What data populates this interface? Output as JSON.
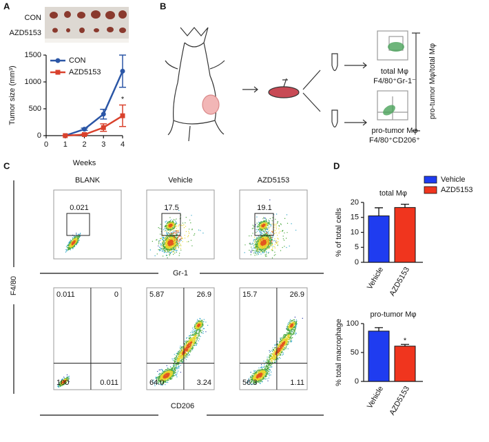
{
  "panel_labels": [
    "A",
    "B",
    "C",
    "D"
  ],
  "tumor_photo": {
    "labels": [
      "CON",
      "AZD5153"
    ]
  },
  "diagram": {
    "gates": [
      {
        "name": "total Mφ",
        "marker": "F4/80⁺Gr-1⁻"
      },
      {
        "name": "pro-tumor Mφ",
        "marker": "F4/80⁺CD206⁺"
      }
    ],
    "ratio": "pro-tumor Mφ/total Mφ"
  },
  "flow": {
    "columns": [
      "BLANK",
      "Vehicle",
      "AZD5153"
    ],
    "gate_values": [
      "0.021",
      "17.5",
      "19.1"
    ],
    "quadrant_values": [
      [
        "0.011",
        "0",
        "100",
        "0.011"
      ],
      [
        "5.87",
        "26.9",
        "64.0",
        "3.24"
      ],
      [
        "15.7",
        "26.9",
        "56.3",
        "1.11"
      ]
    ],
    "x_label_top": "Gr-1",
    "y_label": "F4/80",
    "x_label_bottom": "CD206"
  },
  "chart_data": [
    {
      "type": "line",
      "x_label": "Weeks",
      "y_label": "Tumor size (mm³)",
      "x": [
        1,
        2,
        3,
        4
      ],
      "series": [
        {
          "name": "CON",
          "color": "#2b56a6",
          "values": [
            0,
            120,
            400,
            1200
          ],
          "errors": [
            0,
            20,
            90,
            300
          ]
        },
        {
          "name": "AZD5153",
          "color": "#d9412c",
          "values": [
            0,
            20,
            150,
            370
          ],
          "errors": [
            0,
            10,
            70,
            200
          ]
        }
      ],
      "annotation": "*",
      "xlim": [
        0,
        4
      ],
      "xticks": [
        0,
        1,
        2,
        3,
        4
      ],
      "ylim": [
        0,
        1500
      ],
      "yticks": [
        0,
        500,
        1000,
        1500
      ],
      "legend": "top-left"
    },
    {
      "type": "bar",
      "title": "total Mφ",
      "y_label": "% of total cells",
      "categories": [
        "Vehicle",
        "AZD5153"
      ],
      "colors": [
        "#1f3cf0",
        "#f0351e"
      ],
      "values": [
        15.5,
        18.3
      ],
      "errors": [
        2.7,
        1.1
      ],
      "ylim": [
        0,
        20
      ],
      "yticks": [
        0,
        5,
        10,
        15,
        20
      ],
      "legend": "top-right"
    },
    {
      "type": "bar",
      "title": "pro-tumor Mφ",
      "y_label": "% total macrophage",
      "categories": [
        "Vehicle",
        "AZD5153"
      ],
      "colors": [
        "#1f3cf0",
        "#f0351e"
      ],
      "values": [
        87,
        61
      ],
      "errors": [
        6,
        3
      ],
      "annotation": "*",
      "ylim": [
        0,
        100
      ],
      "yticks": [
        0,
        50,
        100
      ]
    }
  ]
}
